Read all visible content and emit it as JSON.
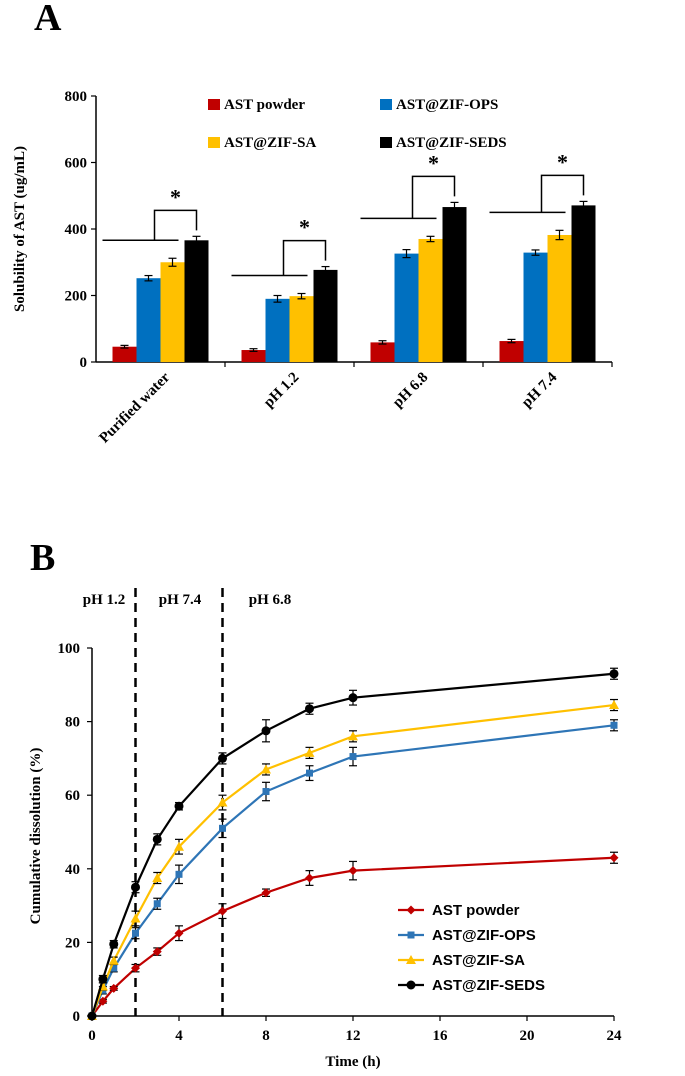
{
  "chart_data": [
    {
      "panel": "A",
      "type": "bar",
      "ylabel": "Solubility  of AST (ug/mL)",
      "xlabel": "",
      "ylim": [
        0,
        800
      ],
      "yticks": [
        0,
        200,
        400,
        600,
        800
      ],
      "categories": [
        "Purified water",
        "pH 1.2",
        "pH 6.8",
        "pH 7.4"
      ],
      "series": [
        {
          "name": "AST powder",
          "color": "#c00000",
          "values": [
            46,
            36,
            59,
            63
          ],
          "errors": [
            4,
            4,
            5,
            5
          ]
        },
        {
          "name": "AST@ZIF-OPS",
          "color": "#0070c0",
          "values": [
            252,
            190,
            326,
            329
          ],
          "errors": [
            8,
            10,
            12,
            8
          ]
        },
        {
          "name": "AST@ZIF-SA",
          "color": "#ffc000",
          "values": [
            300,
            198,
            370,
            382
          ],
          "errors": [
            12,
            8,
            8,
            14
          ]
        },
        {
          "name": "AST@ZIF-SEDS",
          "color": "#000000",
          "values": [
            366,
            277,
            466,
            471
          ],
          "errors": [
            12,
            10,
            14,
            12
          ]
        }
      ],
      "legend_position": "top",
      "significance_marker": "*"
    },
    {
      "panel": "B",
      "type": "line",
      "xlabel": "Time (h)",
      "ylabel": "Cumulative dissolution  (%)",
      "xticks": [
        0,
        4,
        8,
        12,
        16,
        20,
        24
      ],
      "yticks": [
        0,
        20,
        40,
        60,
        80,
        100
      ],
      "xlim": [
        0,
        24
      ],
      "ylim": [
        0,
        100
      ],
      "x": [
        0,
        0.5,
        1,
        2,
        3,
        4,
        6,
        8,
        10,
        12,
        24
      ],
      "series": [
        {
          "name": "AST powder",
          "color": "#c00000",
          "marker": "diamond",
          "values": [
            0,
            4,
            7.5,
            13,
            17.5,
            22.5,
            28.5,
            33.5,
            37.5,
            39.5,
            43
          ],
          "errors": [
            0,
            0.5,
            0.5,
            1,
            1,
            2,
            2,
            1,
            2,
            2.5,
            1.5
          ]
        },
        {
          "name": "AST@ZIF-OPS",
          "color": "#2e75b6",
          "marker": "square",
          "values": [
            0,
            7,
            13,
            22.5,
            30.5,
            38.5,
            51,
            61,
            66,
            70.5,
            79
          ],
          "errors": [
            0,
            1,
            1,
            1.5,
            1.5,
            2.5,
            2.5,
            2.5,
            2,
            2.5,
            1.5
          ]
        },
        {
          "name": "AST@ZIF-SA",
          "color": "#ffc000",
          "marker": "triangle",
          "values": [
            0,
            8,
            15,
            26.5,
            37.5,
            46,
            58,
            67,
            71.5,
            76,
            84.5
          ],
          "errors": [
            0,
            1,
            1,
            2,
            1.5,
            2,
            2,
            1.5,
            1.5,
            1.5,
            1.5
          ]
        },
        {
          "name": "AST@ZIF-SEDS",
          "color": "#000000",
          "marker": "circle",
          "values": [
            0,
            10,
            19.5,
            35,
            48,
            57,
            70,
            77.5,
            83.5,
            86.5,
            93
          ],
          "errors": [
            0,
            1,
            1,
            1.5,
            1.5,
            1,
            1.5,
            3,
            1.5,
            2,
            1.5
          ]
        }
      ],
      "phase_lines_x": [
        2,
        6
      ],
      "phase_labels": [
        "pH 1.2",
        "pH 7.4",
        "pH 6.8"
      ],
      "legend_position": "bottom-right"
    }
  ],
  "panel_labels": [
    "A",
    "B"
  ]
}
